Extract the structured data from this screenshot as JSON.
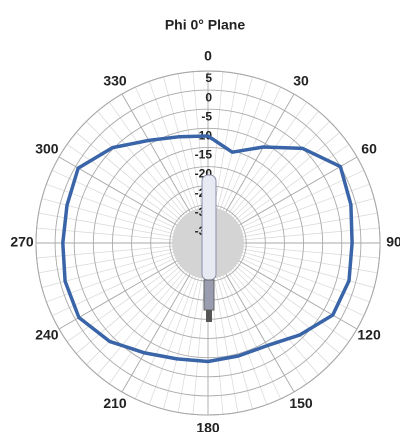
{
  "chart_data": {
    "type": "polar",
    "title": "Phi 0° Plane",
    "theta": [
      0,
      15,
      30,
      45,
      60,
      75,
      90,
      105,
      120,
      135,
      150,
      165,
      180,
      195,
      210,
      225,
      240,
      255,
      270,
      285,
      300,
      315,
      330,
      345
    ],
    "values": [
      -12,
      -15.4,
      -11,
      -5,
      0,
      -1.3,
      -2.3,
      -1.8,
      -2.3,
      -6,
      -9,
      -9.4,
      -9,
      -8.6,
      -6.8,
      -3.6,
      -1,
      -1.3,
      -2,
      -1.8,
      -0.8,
      -4.7,
      -9,
      -11.2
    ],
    "color": "#3a64a8",
    "rlim": [
      -40,
      5
    ],
    "rticks": [
      5,
      0,
      -5,
      -10,
      -15,
      -20,
      -25,
      -30,
      -35
    ],
    "thetaticks": [
      0,
      30,
      60,
      90,
      120,
      150,
      180,
      210,
      240,
      270,
      300,
      330
    ],
    "grid": true
  }
}
